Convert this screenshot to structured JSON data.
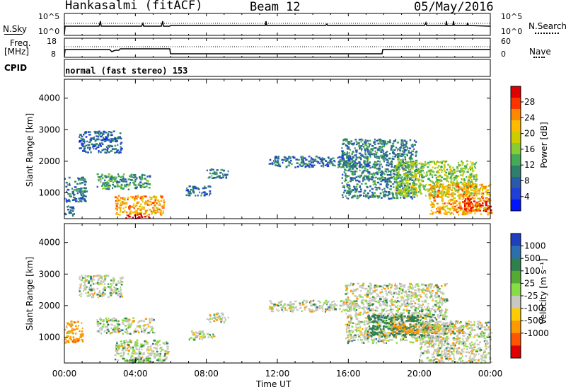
{
  "header": {
    "station": "Hankasalmi (fitACF)",
    "beam": "Beam 12",
    "date": "05/May/2016"
  },
  "status_panels": {
    "nsky_label": "N.Sky",
    "nsky_ticks": [
      "10^5",
      "10^0"
    ],
    "nsearch_label": "N.Search",
    "nsearch_ticks": [
      "10^5",
      "10^0"
    ],
    "freq_label_1": "Freq.",
    "freq_label_2": "[MHz]",
    "freq_ticks": [
      "18",
      "8"
    ],
    "nave_label": "Nave",
    "nave_ticks": [
      "60",
      "0"
    ],
    "cpid_label": "CPID",
    "cpid_text": "normal (fast stereo) 153"
  },
  "axes": {
    "x_label": "Time UT",
    "x_ticks": [
      "00:00",
      "04:00",
      "08:00",
      "12:00",
      "16:00",
      "20:00",
      "00:00"
    ],
    "y_label": "Slant Range [km]",
    "y_ticks": [
      "4000",
      "3000",
      "2000",
      "1000"
    ]
  },
  "power_scale": {
    "title": "Power [dB]",
    "labels": [
      "28",
      "24",
      "20",
      "16",
      "12",
      "8",
      "4"
    ],
    "colors": [
      "#e00000",
      "#ff3300",
      "#ff8800",
      "#ffbb00",
      "#cccc00",
      "#88cc33",
      "#44aa55",
      "#2f7f6f",
      "#2b5aa8",
      "#1f3fd8",
      "#0015ff"
    ]
  },
  "velocity_scale": {
    "title": "Velocity [m s⁻¹]",
    "labels": [
      "1000",
      "500",
      "100",
      "25",
      "-25",
      "-100",
      "-500",
      "-1000"
    ],
    "colors": [
      "#1f3fbf",
      "#2b6fb0",
      "#2f7f4f",
      "#55aa33",
      "#88dd44",
      "#c8c8c0",
      "#ffcc00",
      "#ff9900",
      "#ff5500",
      "#e00000"
    ]
  },
  "chart_data": [
    {
      "type": "heatmap",
      "title": "Power [dB]",
      "xlabel": "Time UT",
      "ylabel": "Slant Range [km]",
      "xlim": [
        0,
        24
      ],
      "ylim": [
        180,
        4600
      ],
      "colorbar_range": [
        0,
        30
      ],
      "regions": [
        {
          "t0": 0.0,
          "t1": 1.2,
          "r0": 700,
          "r1": 1500,
          "v": 8
        },
        {
          "t0": 0.0,
          "t1": 0.5,
          "r0": 250,
          "r1": 600,
          "v": 6
        },
        {
          "t0": 0.8,
          "t1": 3.2,
          "r0": 2250,
          "r1": 2950,
          "v": 6
        },
        {
          "t0": 1.8,
          "t1": 4.8,
          "r0": 1100,
          "r1": 1600,
          "v": 10
        },
        {
          "t0": 2.8,
          "t1": 5.6,
          "r0": 300,
          "r1": 900,
          "v": 22
        },
        {
          "t0": 3.3,
          "t1": 4.8,
          "r0": 180,
          "r1": 320,
          "v": 30
        },
        {
          "t0": 6.8,
          "t1": 8.2,
          "r0": 900,
          "r1": 1200,
          "v": 7
        },
        {
          "t0": 8.0,
          "t1": 9.2,
          "r0": 1450,
          "r1": 1750,
          "v": 8
        },
        {
          "t0": 11.5,
          "t1": 16.5,
          "r0": 1800,
          "r1": 2150,
          "v": 7
        },
        {
          "t0": 15.6,
          "t1": 19.8,
          "r0": 800,
          "r1": 2700,
          "v": 9
        },
        {
          "t0": 18.6,
          "t1": 23.2,
          "r0": 900,
          "r1": 2000,
          "v": 15
        },
        {
          "t0": 20.5,
          "t1": 24.0,
          "r0": 300,
          "r1": 1300,
          "v": 22
        },
        {
          "t0": 22.5,
          "t1": 24.0,
          "r0": 400,
          "r1": 800,
          "v": 29
        }
      ]
    },
    {
      "type": "heatmap",
      "title": "Velocity [m s⁻¹]",
      "xlabel": "Time UT",
      "ylabel": "Slant Range [km]",
      "xlim": [
        0,
        24
      ],
      "ylim": [
        180,
        4600
      ],
      "colorbar_range": [
        -1000,
        1000
      ],
      "regions": [
        {
          "t0": 0.0,
          "t1": 1.0,
          "r0": 800,
          "r1": 1500,
          "v": -300
        },
        {
          "t0": 0.8,
          "t1": 3.2,
          "r0": 2250,
          "r1": 2950,
          "v": 0
        },
        {
          "t0": 1.8,
          "t1": 5.0,
          "r0": 1100,
          "r1": 1600,
          "v": 0
        },
        {
          "t0": 2.8,
          "t1": 5.8,
          "r0": 200,
          "r1": 900,
          "v": 0
        },
        {
          "t0": 3.4,
          "t1": 5.0,
          "r0": 180,
          "r1": 320,
          "v": 60
        },
        {
          "t0": 7.0,
          "t1": 8.4,
          "r0": 900,
          "r1": 1200,
          "v": 0
        },
        {
          "t0": 8.0,
          "t1": 9.2,
          "r0": 1450,
          "r1": 1750,
          "v": 0
        },
        {
          "t0": 11.5,
          "t1": 16.5,
          "r0": 1800,
          "r1": 2150,
          "v": 0
        },
        {
          "t0": 15.8,
          "t1": 21.5,
          "r0": 800,
          "r1": 2700,
          "v": 0
        },
        {
          "t0": 17.0,
          "t1": 21.0,
          "r0": 1000,
          "r1": 1700,
          "v": 80
        },
        {
          "t0": 18.4,
          "t1": 22.5,
          "r0": 1100,
          "r1": 1400,
          "v": -300
        },
        {
          "t0": 20.0,
          "t1": 24.0,
          "r0": 180,
          "r1": 1500,
          "v": 0
        }
      ]
    }
  ]
}
